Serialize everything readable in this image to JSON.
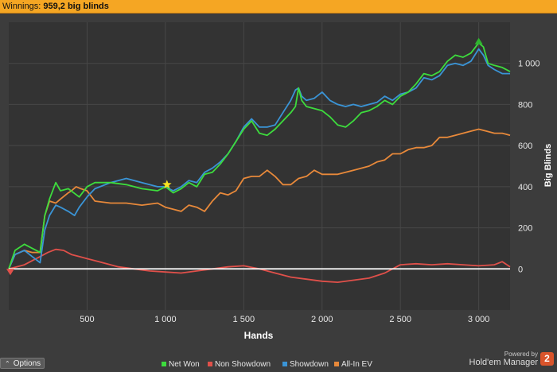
{
  "header": {
    "winnings_label": "Winnings:",
    "winnings_value": "959,2 big blinds"
  },
  "footer": {
    "options_label": "Options",
    "powered_by": "Powered by",
    "brand": "Hold'em Manager",
    "brand_badge": "2"
  },
  "colors": {
    "background": "#3c3c3c",
    "plot_background": "#333333",
    "header_bar": "#f5a623",
    "net_won": "#3ddc3d",
    "non_showdown": "#e0504a",
    "showdown": "#3a94d6",
    "all_in_ev": "#e8893a",
    "zero_line": "#ffffff"
  },
  "chart_data": {
    "type": "line",
    "xlabel": "Hands",
    "ylabel": "Big Blinds",
    "xlim": [
      0,
      3200
    ],
    "ylim": [
      -200,
      1200
    ],
    "x_ticks": [
      500,
      1000,
      1500,
      2000,
      2500,
      3000
    ],
    "x_tick_labels": [
      "500",
      "1 000",
      "1 500",
      "2 000",
      "2 500",
      "3 000"
    ],
    "y_ticks": [
      0,
      200,
      400,
      600,
      800,
      1000
    ],
    "y_tick_labels": [
      "0",
      "200",
      "400",
      "600",
      "800",
      "1 000"
    ],
    "grid": true,
    "legend_position": "bottom",
    "series": [
      {
        "name": "Net Won",
        "color": "#3ddc3d",
        "x": [
          0,
          40,
          100,
          150,
          200,
          230,
          260,
          300,
          330,
          380,
          450,
          500,
          550,
          650,
          750,
          850,
          950,
          1000,
          1050,
          1100,
          1150,
          1200,
          1250,
          1300,
          1350,
          1400,
          1450,
          1500,
          1550,
          1600,
          1650,
          1700,
          1750,
          1800,
          1830,
          1850,
          1870,
          1900,
          1950,
          2000,
          2050,
          2100,
          2150,
          2200,
          2250,
          2300,
          2350,
          2400,
          2450,
          2500,
          2550,
          2600,
          2650,
          2700,
          2750,
          2800,
          2850,
          2900,
          2950,
          3000,
          3030,
          3060,
          3100,
          3150,
          3200
        ],
        "y": [
          0,
          90,
          120,
          100,
          80,
          260,
          340,
          420,
          380,
          390,
          350,
          400,
          420,
          420,
          410,
          390,
          380,
          400,
          370,
          390,
          420,
          400,
          460,
          470,
          510,
          560,
          620,
          680,
          720,
          660,
          650,
          680,
          720,
          760,
          790,
          880,
          820,
          790,
          780,
          770,
          740,
          700,
          690,
          720,
          760,
          770,
          790,
          820,
          800,
          840,
          860,
          900,
          950,
          940,
          960,
          1010,
          1040,
          1030,
          1050,
          1100,
          1080,
          1000,
          990,
          980,
          960
        ]
      },
      {
        "name": "Non Showdown",
        "color": "#e0504a",
        "x": [
          0,
          50,
          100,
          150,
          200,
          250,
          300,
          350,
          400,
          450,
          500,
          600,
          700,
          800,
          900,
          1000,
          1100,
          1200,
          1300,
          1400,
          1500,
          1600,
          1700,
          1800,
          1900,
          2000,
          2100,
          2200,
          2300,
          2400,
          2450,
          2500,
          2600,
          2700,
          2800,
          2900,
          3000,
          3100,
          3150,
          3200
        ],
        "y": [
          0,
          10,
          20,
          40,
          60,
          80,
          95,
          90,
          70,
          60,
          50,
          30,
          10,
          0,
          -10,
          -15,
          -20,
          -10,
          0,
          10,
          15,
          0,
          -20,
          -40,
          -50,
          -60,
          -65,
          -55,
          -45,
          -20,
          0,
          20,
          25,
          20,
          25,
          20,
          15,
          20,
          35,
          10
        ]
      },
      {
        "name": "Showdown",
        "color": "#3a94d6",
        "x": [
          0,
          40,
          100,
          150,
          200,
          230,
          260,
          300,
          330,
          380,
          420,
          450,
          500,
          550,
          650,
          750,
          850,
          950,
          1000,
          1050,
          1100,
          1150,
          1200,
          1250,
          1300,
          1350,
          1400,
          1450,
          1500,
          1550,
          1600,
          1650,
          1700,
          1750,
          1800,
          1830,
          1850,
          1870,
          1900,
          1950,
          2000,
          2050,
          2100,
          2150,
          2200,
          2250,
          2300,
          2350,
          2400,
          2450,
          2500,
          2550,
          2600,
          2650,
          2700,
          2750,
          2800,
          2850,
          2900,
          2950,
          3000,
          3030,
          3060,
          3100,
          3150,
          3200
        ],
        "y": [
          0,
          70,
          90,
          60,
          30,
          190,
          260,
          310,
          300,
          280,
          260,
          300,
          350,
          390,
          420,
          440,
          420,
          400,
          400,
          380,
          400,
          430,
          420,
          470,
          490,
          520,
          560,
          620,
          690,
          730,
          690,
          690,
          700,
          760,
          820,
          870,
          880,
          840,
          820,
          830,
          860,
          820,
          800,
          790,
          800,
          790,
          800,
          810,
          840,
          820,
          850,
          860,
          880,
          930,
          920,
          940,
          990,
          1000,
          990,
          1010,
          1070,
          1040,
          990,
          970,
          950,
          950
        ]
      },
      {
        "name": "All-In EV",
        "color": "#e8893a",
        "x": [
          0,
          40,
          100,
          150,
          200,
          230,
          260,
          300,
          330,
          380,
          400,
          430,
          460,
          500,
          550,
          650,
          750,
          850,
          950,
          1000,
          1050,
          1100,
          1150,
          1200,
          1250,
          1300,
          1350,
          1400,
          1450,
          1500,
          1550,
          1600,
          1650,
          1700,
          1750,
          1800,
          1850,
          1900,
          1950,
          2000,
          2050,
          2100,
          2150,
          2200,
          2250,
          2300,
          2350,
          2400,
          2450,
          2500,
          2550,
          2600,
          2650,
          2700,
          2750,
          2800,
          2850,
          2900,
          2950,
          3000,
          3050,
          3100,
          3150,
          3200
        ],
        "y": [
          0,
          70,
          90,
          80,
          80,
          260,
          330,
          320,
          340,
          370,
          380,
          400,
          390,
          380,
          330,
          320,
          320,
          310,
          320,
          300,
          290,
          280,
          310,
          300,
          280,
          330,
          370,
          360,
          380,
          440,
          450,
          450,
          480,
          450,
          410,
          410,
          440,
          450,
          480,
          460,
          460,
          460,
          470,
          480,
          490,
          500,
          520,
          530,
          560,
          560,
          580,
          590,
          590,
          600,
          640,
          640,
          650,
          660,
          670,
          680,
          670,
          660,
          660,
          650
        ]
      }
    ],
    "markers": [
      {
        "shape": "triangle-down",
        "x": 10,
        "y": 0,
        "color": "#e0504a"
      },
      {
        "shape": "star",
        "x": 1010,
        "y": 410,
        "color": "#f8e321"
      },
      {
        "shape": "triangle-up",
        "x": 3000,
        "y": 1105,
        "color": "#2fb52f"
      }
    ]
  }
}
